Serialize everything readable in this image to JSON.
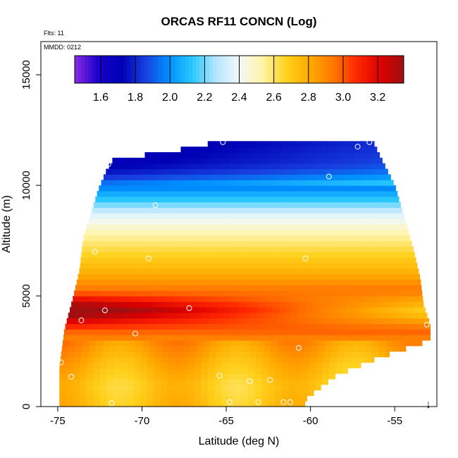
{
  "chart_data": {
    "type": "heatmap",
    "title": "ORCAS RF11 CONCN (Log)",
    "flights_note": "Flts: 11",
    "date_note": "MMDD: 0212",
    "xlabel": "Latitude (deg N)",
    "ylabel": "Altitude (m)",
    "xlim": [
      -76,
      -52.5
    ],
    "ylim": [
      0,
      16500
    ],
    "x_ticks": [
      -75,
      -70,
      -65,
      -60,
      -55
    ],
    "y_ticks": [
      0,
      5000,
      10000,
      15000
    ],
    "colorbar": {
      "min": 1.45,
      "max": 3.35,
      "ticks": [
        1.6,
        1.8,
        2.0,
        2.2,
        2.4,
        2.6,
        2.8,
        3.0,
        3.2
      ],
      "colors": [
        "#8a2be2",
        "#1a00cc",
        "#0000b4",
        "#1840e0",
        "#0090ff",
        "#28c8ff",
        "#b4e6ff",
        "#f2f8f8",
        "#fff4a8",
        "#ffd21e",
        "#ffaa00",
        "#ff7800",
        "#ff2800",
        "#dc0000",
        "#a01010"
      ]
    },
    "domain_boundary": {
      "left": [
        [
          -74.9,
          0
        ],
        [
          -74.9,
          1800
        ],
        [
          -74.6,
          3500
        ],
        [
          -74.1,
          4900
        ],
        [
          -73.7,
          6200
        ],
        [
          -73.5,
          7600
        ],
        [
          -73.0,
          8800
        ],
        [
          -72.6,
          9800
        ],
        [
          -72.1,
          10700
        ],
        [
          -71.7,
          11200
        ],
        [
          -68.5,
          11500
        ],
        [
          -65.3,
          12000
        ]
      ],
      "right": [
        [
          -56.3,
          12000
        ],
        [
          -55.8,
          11200
        ],
        [
          -55.0,
          10000
        ],
        [
          -54.5,
          8700
        ],
        [
          -53.9,
          7100
        ],
        [
          -53.5,
          5800
        ],
        [
          -53.3,
          4600
        ],
        [
          -52.9,
          3700
        ],
        [
          -52.9,
          3000
        ],
        [
          -56.0,
          2200
        ],
        [
          -58.5,
          1400
        ],
        [
          -60.2,
          400
        ],
        [
          -60.4,
          0
        ]
      ]
    },
    "concentration_profile": {
      "altitude_m": [
        0,
        1000,
        2000,
        3000,
        4000,
        4400,
        5000,
        6000,
        7000,
        8000,
        8700,
        9300,
        10000,
        10500,
        11000,
        12000
      ],
      "log_concn": [
        2.75,
        2.72,
        2.8,
        2.9,
        3.1,
        3.2,
        3.0,
        2.8,
        2.65,
        2.5,
        2.35,
        2.15,
        1.95,
        1.75,
        1.65,
        1.6
      ]
    },
    "flight_points": [
      {
        "lat": -74.8,
        "alt": 2000
      },
      {
        "lat": -74.2,
        "alt": 1350
      },
      {
        "lat": -73.6,
        "alt": 3900
      },
      {
        "lat": -73.6,
        "alt": 7600
      },
      {
        "lat": -72.8,
        "alt": 7000
      },
      {
        "lat": -72.2,
        "alt": 4350
      },
      {
        "lat": -72.0,
        "alt": 10950
      },
      {
        "lat": -71.8,
        "alt": 150
      },
      {
        "lat": -70.4,
        "alt": 3300
      },
      {
        "lat": -69.6,
        "alt": 6700
      },
      {
        "lat": -69.2,
        "alt": 9100
      },
      {
        "lat": -67.2,
        "alt": 4450
      },
      {
        "lat": -65.4,
        "alt": 1400
      },
      {
        "lat": -65.2,
        "alt": 11950
      },
      {
        "lat": -64.8,
        "alt": 200
      },
      {
        "lat": -63.6,
        "alt": 1150
      },
      {
        "lat": -63.1,
        "alt": 200
      },
      {
        "lat": -62.4,
        "alt": 1200
      },
      {
        "lat": -61.6,
        "alt": 200
      },
      {
        "lat": -61.2,
        "alt": 200
      },
      {
        "lat": -60.7,
        "alt": 2650
      },
      {
        "lat": -60.3,
        "alt": 6700
      },
      {
        "lat": -58.9,
        "alt": 10400
      },
      {
        "lat": -57.2,
        "alt": 11750
      },
      {
        "lat": -56.5,
        "alt": 11950
      },
      {
        "lat": -53.1,
        "alt": 3700
      }
    ],
    "arrow_marker": {
      "lat": -53.0,
      "symbol": "↓"
    }
  }
}
